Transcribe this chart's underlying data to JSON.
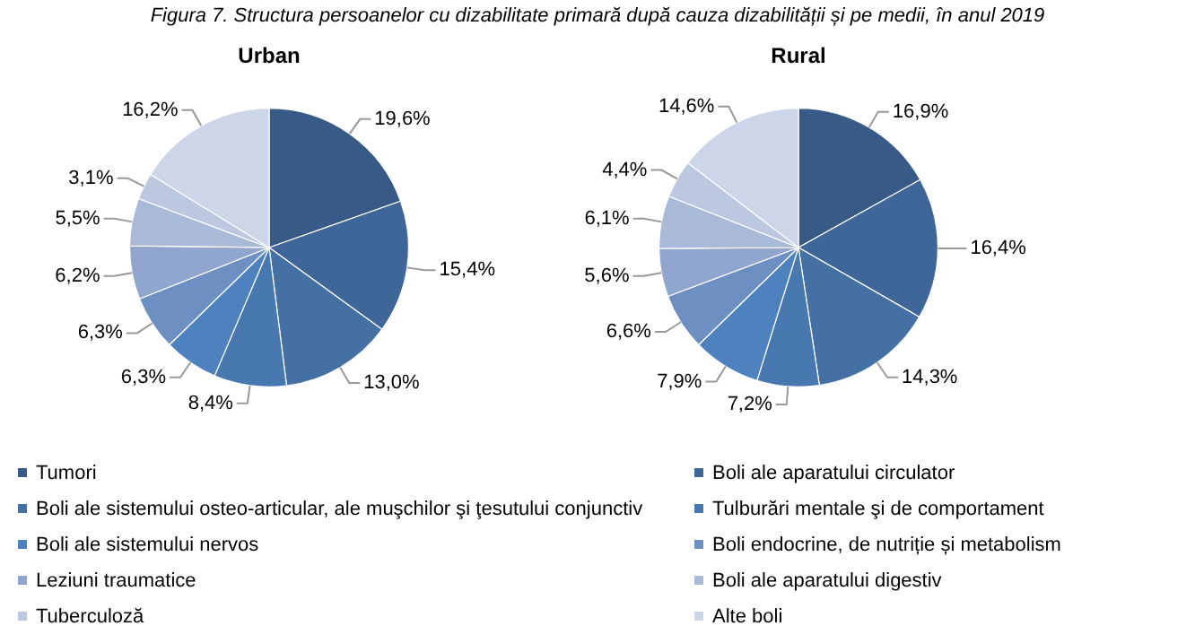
{
  "chart_data": {
    "type": "pie",
    "title": "Figura 7. Structura persoanelor cu dizabilitate primară după cauza dizabilității și pe medii, în anul 2019",
    "legend": "bottom",
    "categories": [
      "Tumori",
      "Boli ale aparatului circulator",
      "Boli ale sistemului osteo-articular, ale muşchilor şi ţesutului conjunctiv",
      "Tulburări mentale şi de comportament",
      "Boli ale sistemului nervos",
      "Boli endocrine, de nutriție și metabolism",
      "Leziuni traumatice",
      "Boli ale aparatului digestiv",
      "Tuberculoză",
      "Alte boli"
    ],
    "colors": [
      "#385a86",
      "#3e6698",
      "#4470a4",
      "#4878b0",
      "#4e82be",
      "#6e8fc1",
      "#91a6cf",
      "#a9b9d8",
      "#bcc8e0",
      "#ccd6e8"
    ],
    "series": [
      {
        "name": "Urban",
        "values": [
          19.6,
          15.4,
          13.0,
          8.4,
          6.3,
          6.3,
          6.2,
          5.5,
          3.1,
          16.2
        ],
        "value_labels": [
          "19,6%",
          "15,4%",
          "13,0%",
          "8,4%",
          "6,3%",
          "6,3%",
          "6,2%",
          "5,5%",
          "3,1%",
          "16,2%"
        ]
      },
      {
        "name": "Rural",
        "values": [
          16.9,
          16.4,
          14.3,
          7.2,
          7.9,
          6.6,
          5.6,
          6.1,
          4.4,
          14.6
        ],
        "value_labels": [
          "16,9%",
          "16,4%",
          "14,3%",
          "7,2%",
          "7,9%",
          "6,6%",
          "5,6%",
          "6,1%",
          "4,4%",
          "14,6%"
        ]
      }
    ]
  }
}
